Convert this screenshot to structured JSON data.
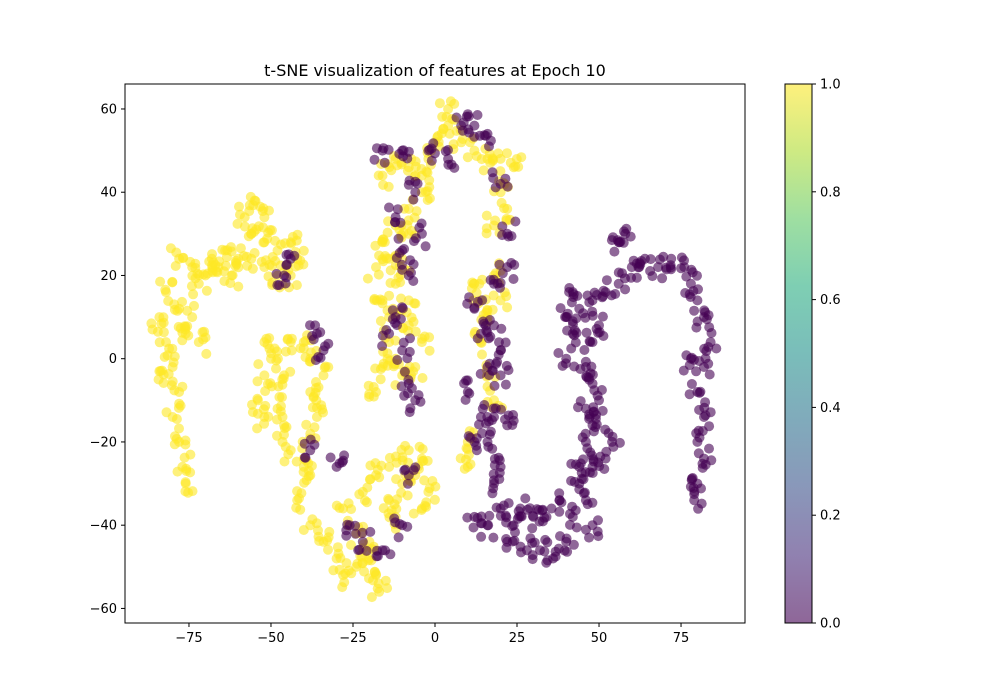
{
  "chart_data": {
    "type": "scatter",
    "title": "t-SNE visualization of features at Epoch 10",
    "xlabel": "",
    "ylabel": "",
    "xlim": [
      -94.5,
      94.5
    ],
    "ylim": [
      -63.5,
      66
    ],
    "xticks": [
      -75,
      -50,
      -25,
      0,
      25,
      50,
      75
    ],
    "xtick_labels": [
      "−75",
      "−50",
      "−25",
      "0",
      "25",
      "50",
      "75"
    ],
    "yticks": [
      -60,
      -40,
      -20,
      0,
      20,
      40,
      60
    ],
    "yticks_labels": [
      "−60",
      "−40",
      "−20",
      "0",
      "20",
      "40",
      "60"
    ],
    "grid": false,
    "legend": "none",
    "colormap": "viridis",
    "point_alpha": 0.6,
    "colorbar": {
      "range": [
        0.0,
        1.0
      ],
      "ticks": [
        0.0,
        0.2,
        0.4,
        0.6,
        0.8,
        1.0
      ],
      "tick_labels": [
        "0.0",
        "0.2",
        "0.4",
        "0.6",
        "0.8",
        "1.0"
      ]
    },
    "class_colors": {
      "0": "#440154",
      "1": "#fde725"
    },
    "clusters": [
      {
        "label": 1,
        "points": [
          [
            -78,
            24
          ],
          [
            -74,
            22
          ],
          [
            -70,
            20
          ],
          [
            -66,
            22
          ],
          [
            -62,
            20
          ],
          [
            -60,
            24
          ],
          [
            -64,
            26
          ],
          [
            -68,
            24
          ],
          [
            -72,
            18
          ]
        ]
      },
      {
        "label": 1,
        "points": [
          [
            -82,
            16
          ],
          [
            -84,
            10
          ],
          [
            -82,
            4
          ],
          [
            -80,
            -2
          ],
          [
            -78,
            -8
          ],
          [
            -80,
            -14
          ],
          [
            -78,
            -20
          ],
          [
            -77,
            -26
          ],
          [
            -76,
            -30
          ],
          [
            -84,
            -3
          ],
          [
            -76,
            6
          ],
          [
            -72,
            4
          ],
          [
            -74,
            10
          ],
          [
            -78,
            12
          ]
        ]
      },
      {
        "label": 1,
        "points": [
          [
            -58,
            34
          ],
          [
            -55,
            38
          ],
          [
            -52,
            34
          ],
          [
            -56,
            30
          ],
          [
            -52,
            28
          ],
          [
            -48,
            26
          ],
          [
            -44,
            28
          ],
          [
            -42,
            24
          ],
          [
            -44,
            20
          ],
          [
            -48,
            20
          ],
          [
            -52,
            22
          ],
          [
            -56,
            24
          ]
        ]
      },
      {
        "label": 1,
        "points": [
          [
            -52,
            4
          ],
          [
            -50,
            0
          ],
          [
            -52,
            -4
          ],
          [
            -54,
            -10
          ],
          [
            -52,
            -14
          ],
          [
            -48,
            -12
          ],
          [
            -46,
            -16
          ],
          [
            -44,
            -22
          ],
          [
            -40,
            -24
          ],
          [
            -38,
            -18
          ],
          [
            -36,
            -14
          ],
          [
            -38,
            -8
          ],
          [
            -34,
            -4
          ],
          [
            -38,
            0
          ],
          [
            -40,
            4
          ],
          [
            -44,
            4
          ],
          [
            -46,
            -4
          ]
        ]
      },
      {
        "label": 1,
        "points": [
          [
            -38,
            -28
          ],
          [
            -42,
            -34
          ],
          [
            -38,
            -40
          ],
          [
            -34,
            -44
          ],
          [
            -30,
            -48
          ],
          [
            -28,
            -52
          ],
          [
            -24,
            -50
          ],
          [
            -20,
            -48
          ],
          [
            -18,
            -52
          ],
          [
            -17,
            -56
          ],
          [
            -20,
            -44
          ],
          [
            -24,
            -42
          ],
          [
            -28,
            -36
          ],
          [
            -22,
            -32
          ],
          [
            -18,
            -28
          ],
          [
            -14,
            -34
          ],
          [
            -12,
            -38
          ],
          [
            -10,
            -30
          ],
          [
            -8,
            -22
          ],
          [
            -6,
            -28
          ],
          [
            -4,
            -24
          ],
          [
            -2,
            -32
          ],
          [
            -4,
            -36
          ],
          [
            -14,
            -26
          ]
        ]
      },
      {
        "label": 1,
        "points": [
          [
            -18,
            -8
          ],
          [
            -16,
            -2
          ],
          [
            -14,
            4
          ],
          [
            -12,
            0
          ],
          [
            -10,
            -4
          ],
          [
            -6,
            -2
          ],
          [
            -4,
            4
          ],
          [
            -8,
            8
          ],
          [
            -14,
            10
          ],
          [
            -16,
            14
          ],
          [
            -12,
            18
          ],
          [
            -8,
            14
          ],
          [
            -18,
            22
          ],
          [
            -16,
            28
          ],
          [
            -12,
            32
          ],
          [
            -8,
            30
          ],
          [
            -10,
            24
          ],
          [
            -14,
            24
          ]
        ]
      },
      {
        "label": 1,
        "points": [
          [
            -16,
            44
          ],
          [
            -12,
            48
          ],
          [
            -8,
            46
          ],
          [
            -4,
            44
          ],
          [
            -2,
            48
          ],
          [
            0,
            52
          ],
          [
            4,
            56
          ],
          [
            4,
            60
          ],
          [
            8,
            52
          ],
          [
            12,
            50
          ],
          [
            16,
            48
          ],
          [
            20,
            48
          ],
          [
            24,
            46
          ],
          [
            20,
            40
          ],
          [
            22,
            36
          ],
          [
            18,
            32
          ],
          [
            -4,
            40
          ],
          [
            -8,
            36
          ]
        ]
      },
      {
        "label": 1,
        "points": [
          [
            12,
            18
          ],
          [
            14,
            14
          ],
          [
            16,
            10
          ],
          [
            14,
            4
          ],
          [
            16,
            -4
          ],
          [
            18,
            -10
          ],
          [
            10,
            -20
          ],
          [
            10,
            -26
          ],
          [
            18,
            20
          ],
          [
            20,
            14
          ]
        ]
      },
      {
        "label": 0,
        "points": [
          [
            -16,
            50
          ],
          [
            -10,
            50
          ],
          [
            -6,
            40
          ],
          [
            -2,
            50
          ],
          [
            4,
            48
          ],
          [
            8,
            56
          ],
          [
            12,
            56
          ],
          [
            16,
            54
          ],
          [
            20,
            42
          ],
          [
            22,
            30
          ],
          [
            22,
            22
          ],
          [
            -4,
            30
          ],
          [
            -12,
            34
          ],
          [
            -10,
            26
          ],
          [
            -8,
            20
          ],
          [
            -12,
            10
          ],
          [
            -14,
            6
          ],
          [
            -10,
            2
          ],
          [
            -8,
            -6
          ],
          [
            -6,
            -10
          ]
        ]
      },
      {
        "label": 0,
        "points": [
          [
            -44,
            24
          ],
          [
            -46,
            20
          ],
          [
            -38,
            -22
          ],
          [
            -36,
            6
          ],
          [
            -34,
            2
          ],
          [
            -30,
            -26
          ],
          [
            -26,
            -40
          ],
          [
            -22,
            -44
          ],
          [
            -16,
            -46
          ],
          [
            -10,
            -40
          ],
          [
            -8,
            -28
          ]
        ]
      },
      {
        "label": 0,
        "points": [
          [
            12,
            12
          ],
          [
            14,
            6
          ],
          [
            18,
            8
          ],
          [
            20,
            2
          ],
          [
            16,
            -2
          ],
          [
            10,
            -8
          ],
          [
            14,
            -14
          ],
          [
            18,
            -14
          ],
          [
            12,
            -20
          ],
          [
            16,
            -20
          ],
          [
            18,
            -30
          ],
          [
            20,
            -26
          ],
          [
            22,
            -16
          ],
          [
            20,
            -4
          ],
          [
            18,
            18
          ]
        ]
      },
      {
        "label": 0,
        "points": [
          [
            12,
            -38
          ],
          [
            16,
            -40
          ],
          [
            20,
            -36
          ],
          [
            24,
            -40
          ],
          [
            28,
            -46
          ],
          [
            32,
            -46
          ],
          [
            36,
            -48
          ],
          [
            40,
            -44
          ],
          [
            42,
            -38
          ],
          [
            46,
            -34
          ],
          [
            48,
            -40
          ],
          [
            44,
            -30
          ],
          [
            38,
            -34
          ],
          [
            34,
            -38
          ],
          [
            30,
            -38
          ],
          [
            26,
            -36
          ],
          [
            22,
            -44
          ]
        ]
      },
      {
        "label": 0,
        "points": [
          [
            44,
            -26
          ],
          [
            46,
            -20
          ],
          [
            48,
            -16
          ],
          [
            50,
            -10
          ],
          [
            48,
            -6
          ],
          [
            46,
            -2
          ],
          [
            48,
            4
          ],
          [
            50,
            8
          ],
          [
            48,
            14
          ],
          [
            52,
            16
          ],
          [
            56,
            18
          ],
          [
            60,
            22
          ],
          [
            64,
            24
          ],
          [
            68,
            22
          ],
          [
            72,
            24
          ],
          [
            76,
            22
          ],
          [
            78,
            18
          ],
          [
            80,
            14
          ],
          [
            82,
            10
          ],
          [
            84,
            4
          ],
          [
            82,
            -2
          ],
          [
            80,
            -8
          ],
          [
            82,
            -14
          ],
          [
            80,
            -20
          ],
          [
            82,
            -24
          ],
          [
            80,
            -30
          ],
          [
            79,
            -34
          ],
          [
            56,
            28
          ],
          [
            58,
            30
          ],
          [
            40,
            0
          ],
          [
            42,
            6
          ],
          [
            44,
            12
          ],
          [
            42,
            16
          ],
          [
            40,
            10
          ],
          [
            46,
            -12
          ],
          [
            52,
            -24
          ],
          [
            48,
            -26
          ],
          [
            54,
            -20
          ],
          [
            78,
            0
          ]
        ]
      }
    ]
  }
}
